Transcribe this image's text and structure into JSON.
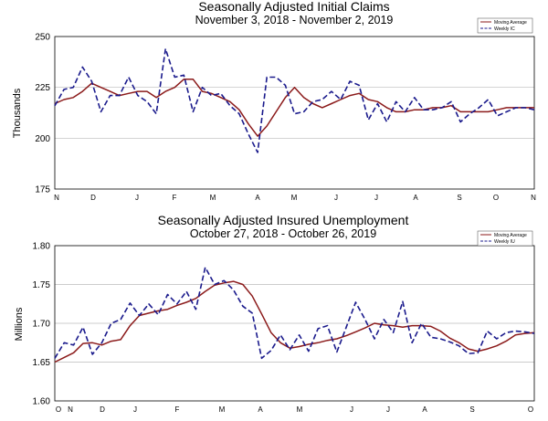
{
  "colors": {
    "moving_average": "#8b1a1a",
    "weekly": "#1a1a8c",
    "grid": "#bbbbbb",
    "axis": "#000000"
  },
  "chart_data": [
    {
      "type": "line",
      "title": "Seasonally Adjusted Initial Claims",
      "subtitle": "November 3, 2018 - November 2, 2019",
      "xlabel": "",
      "ylabel": "Thousands",
      "ylim": [
        175,
        250
      ],
      "yticks": [
        "250",
        "225",
        "200",
        "175"
      ],
      "ytick_values": [
        250,
        225,
        200,
        175
      ],
      "months": [
        "N",
        "D",
        "J",
        "F",
        "M",
        "A",
        "M",
        "J",
        "J",
        "A",
        "S",
        "O",
        "N"
      ],
      "grid": true,
      "legend_position": "top-right",
      "series": [
        {
          "name": "Moving Average",
          "style": "solid",
          "values": [
            217,
            219,
            220,
            223,
            227,
            225,
            223,
            221,
            222,
            223,
            223,
            220,
            223,
            225,
            229,
            229,
            223,
            222,
            220,
            218,
            214,
            207,
            201,
            206,
            213,
            220,
            225,
            220,
            217,
            215,
            217,
            219,
            221,
            222,
            219,
            218,
            215,
            213,
            213,
            214,
            214,
            215,
            215,
            216,
            213,
            213,
            213,
            213,
            214,
            215,
            215,
            215,
            215
          ]
        },
        {
          "name": "Weekly IC",
          "style": "dashed",
          "values": [
            216,
            224,
            225,
            235,
            228,
            213,
            221,
            221,
            230,
            221,
            218,
            212,
            244,
            230,
            231,
            213,
            225,
            221,
            222,
            216,
            212,
            202,
            193,
            230,
            230,
            226,
            212,
            213,
            218,
            219,
            223,
            219,
            228,
            226,
            209,
            217,
            208,
            218,
            213,
            220,
            214,
            214,
            215,
            218,
            208,
            212,
            215,
            219,
            211,
            213,
            215,
            215,
            214
          ]
        }
      ]
    },
    {
      "type": "line",
      "title": "Seasonally Adjusted Insured Unemployment",
      "subtitle": "October 27, 2018 - October 26, 2019",
      "xlabel": "",
      "ylabel": "Millions",
      "ylim": [
        1.6,
        1.8
      ],
      "yticks": [
        "1.80",
        "1.75",
        "1.70",
        "1.65",
        "1.60"
      ],
      "ytick_values": [
        1.8,
        1.75,
        1.7,
        1.65,
        1.6
      ],
      "months": [
        "O",
        "N",
        "D",
        "J",
        "F",
        "M",
        "A",
        "M",
        "J",
        "J",
        "A",
        "S",
        "O"
      ],
      "grid": true,
      "legend_position": "top-right",
      "series": [
        {
          "name": "Moving Average",
          "style": "solid",
          "values": [
            1.65,
            1.656,
            1.662,
            1.674,
            1.675,
            1.672,
            1.677,
            1.679,
            1.697,
            1.71,
            1.713,
            1.716,
            1.718,
            1.723,
            1.727,
            1.732,
            1.741,
            1.749,
            1.752,
            1.754,
            1.75,
            1.735,
            1.712,
            1.688,
            1.675,
            1.668,
            1.67,
            1.673,
            1.675,
            1.678,
            1.68,
            1.684,
            1.689,
            1.694,
            1.7,
            1.698,
            1.697,
            1.695,
            1.697,
            1.697,
            1.696,
            1.69,
            1.681,
            1.675,
            1.667,
            1.664,
            1.667,
            1.671,
            1.677,
            1.685,
            1.687,
            1.688
          ]
        },
        {
          "name": "Weekly IU",
          "style": "dashed",
          "values": [
            1.655,
            1.675,
            1.672,
            1.695,
            1.66,
            1.675,
            1.7,
            1.705,
            1.726,
            1.71,
            1.725,
            1.711,
            1.737,
            1.725,
            1.741,
            1.718,
            1.772,
            1.75,
            1.755,
            1.743,
            1.722,
            1.713,
            1.655,
            1.665,
            1.685,
            1.666,
            1.685,
            1.664,
            1.693,
            1.697,
            1.663,
            1.695,
            1.727,
            1.705,
            1.68,
            1.705,
            1.688,
            1.728,
            1.675,
            1.7,
            1.682,
            1.68,
            1.676,
            1.671,
            1.661,
            1.662,
            1.69,
            1.68,
            1.688,
            1.69,
            1.689,
            1.687
          ]
        }
      ]
    }
  ]
}
